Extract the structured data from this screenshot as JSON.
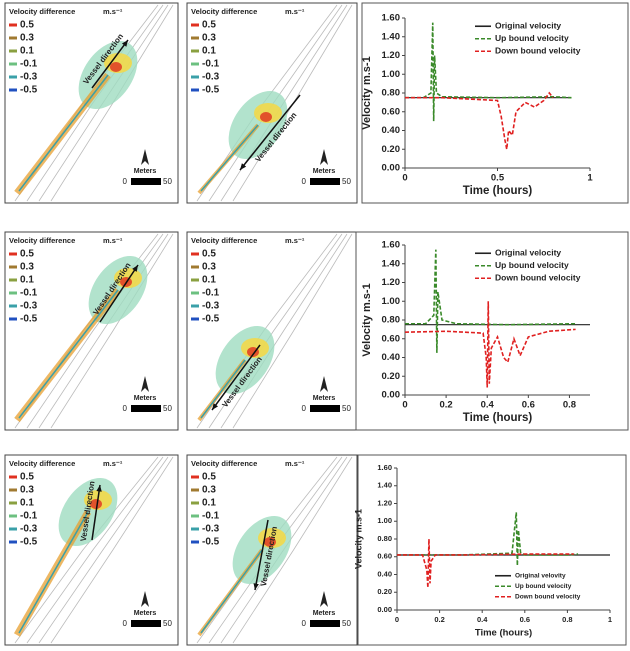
{
  "map_legend": {
    "title": "Velocity difference",
    "unit": "m.s⁻¹",
    "levels": [
      0.5,
      0.3,
      0.1,
      -0.1,
      -0.3,
      -0.5
    ],
    "colors": [
      "#e03020",
      "#a07a30",
      "#8aa040",
      "#6cc080",
      "#3aa0a8",
      "#2050c0"
    ]
  },
  "map_labels": {
    "direction": "Vessel direction",
    "scale_unit": "Meters",
    "scale_start": 0,
    "scale_end": 50
  },
  "chart_data": [
    {
      "type": "line",
      "x_label": "Time (hours)",
      "y_label": "Velocity m.s-1",
      "xlim": [
        0,
        1
      ],
      "xticks": [
        0,
        0.5,
        1
      ],
      "ylim": [
        0,
        1.6
      ],
      "yticks": [
        {
          "value": 0,
          "label": "0.00"
        },
        {
          "value": 0.2,
          "label": "0.20"
        },
        {
          "value": 0.4,
          "label": "0.40"
        },
        {
          "value": 0.6,
          "label": "0.60"
        },
        {
          "value": 0.8,
          "label": "0.80"
        },
        {
          "value": 1.0,
          "label": "1.00"
        },
        {
          "value": 1.2,
          "label": "1.20"
        },
        {
          "value": 1.4,
          "label": "1.40"
        },
        {
          "value": 1.6,
          "label": "1.60"
        }
      ],
      "legend": "upper right",
      "series": [
        {
          "name": "Original velocity",
          "color": "#222222",
          "dashed": false,
          "x": [
            0,
            0.9
          ],
          "values": [
            0.75,
            0.75
          ]
        },
        {
          "name": "Up bound velocity",
          "color": "#3a8a2a",
          "dashed": true,
          "x": [
            0,
            0.1,
            0.14,
            0.15,
            0.155,
            0.16,
            0.17,
            0.2,
            0.5,
            0.8,
            0.9
          ],
          "values": [
            0.75,
            0.75,
            0.8,
            1.55,
            0.5,
            1.2,
            0.8,
            0.76,
            0.75,
            0.76,
            0.75
          ]
        },
        {
          "name": "Down bound velocity",
          "color": "#e02020",
          "dashed": true,
          "x": [
            0,
            0.2,
            0.5,
            0.52,
            0.54,
            0.55,
            0.56,
            0.58,
            0.6,
            0.65,
            0.7,
            0.75,
            0.78,
            0.8
          ],
          "values": [
            0.75,
            0.75,
            0.72,
            0.55,
            0.3,
            0.2,
            0.4,
            0.35,
            0.6,
            0.7,
            0.65,
            0.72,
            0.8,
            0.75
          ]
        }
      ]
    },
    {
      "type": "line",
      "x_label": "Time (hours)",
      "y_label": "Velocity m.s-1",
      "xlim": [
        0,
        0.9
      ],
      "xticks": [
        0,
        0.2,
        0.4,
        0.6,
        0.8
      ],
      "ylim": [
        0,
        1.6
      ],
      "yticks": [
        {
          "value": 0,
          "label": "0.00"
        },
        {
          "value": 0.2,
          "label": "0.20"
        },
        {
          "value": 0.4,
          "label": "0.40"
        },
        {
          "value": 0.6,
          "label": "0.60"
        },
        {
          "value": 0.8,
          "label": "0.80"
        },
        {
          "value": 1.0,
          "label": "1.00"
        },
        {
          "value": 1.2,
          "label": "1.20"
        },
        {
          "value": 1.4,
          "label": "1.40"
        },
        {
          "value": 1.6,
          "label": "1.60"
        }
      ],
      "legend": "upper right",
      "series": [
        {
          "name": "Original velocity",
          "color": "#222222",
          "dashed": false,
          "x": [
            0,
            0.9
          ],
          "values": [
            0.75,
            0.75
          ]
        },
        {
          "name": "Up bound velocity",
          "color": "#3a8a2a",
          "dashed": true,
          "x": [
            0,
            0.1,
            0.14,
            0.15,
            0.155,
            0.16,
            0.18,
            0.25,
            0.5,
            0.83
          ],
          "values": [
            0.76,
            0.76,
            0.85,
            1.55,
            0.45,
            1.1,
            0.8,
            0.76,
            0.75,
            0.76
          ]
        },
        {
          "name": "Down bound velocity",
          "color": "#e02020",
          "dashed": true,
          "x": [
            0,
            0.2,
            0.38,
            0.395,
            0.4,
            0.405,
            0.41,
            0.42,
            0.45,
            0.48,
            0.5,
            0.53,
            0.56,
            0.6,
            0.7,
            0.83
          ],
          "values": [
            0.67,
            0.68,
            0.66,
            0.4,
            0.08,
            1.0,
            0.12,
            0.5,
            0.62,
            0.4,
            0.35,
            0.6,
            0.42,
            0.62,
            0.68,
            0.7
          ]
        }
      ]
    },
    {
      "type": "line",
      "x_label": "Time (hours)",
      "y_label": "Velocity m.s-1",
      "xlim": [
        0,
        1
      ],
      "xticks": [
        0,
        0.2,
        0.4,
        0.6,
        0.8,
        1
      ],
      "ylim": [
        0,
        1.6
      ],
      "yticks": [
        {
          "value": 0,
          "label": "0.00"
        },
        {
          "value": 0.2,
          "label": "0.20"
        },
        {
          "value": 0.4,
          "label": "0.40"
        },
        {
          "value": 0.6,
          "label": "0.60"
        },
        {
          "value": 0.8,
          "label": "0.80"
        },
        {
          "value": 1.0,
          "label": "1.00"
        },
        {
          "value": 1.2,
          "label": "1.20"
        },
        {
          "value": 1.4,
          "label": "1.40"
        },
        {
          "value": 1.6,
          "label": "1.60"
        }
      ],
      "legend": "lower right",
      "series": [
        {
          "name": "Original velovity",
          "color": "#222222",
          "dashed": false,
          "x": [
            0,
            1
          ],
          "values": [
            0.62,
            0.62
          ]
        },
        {
          "name": "Up bound velocity",
          "color": "#3a8a2a",
          "dashed": true,
          "x": [
            0,
            0.3,
            0.54,
            0.56,
            0.565,
            0.57,
            0.58,
            0.6,
            0.8,
            0.85
          ],
          "values": [
            0.62,
            0.62,
            0.64,
            1.1,
            0.5,
            0.9,
            0.65,
            0.62,
            0.62,
            0.63
          ]
        },
        {
          "name": "Down bound velocity",
          "color": "#e02020",
          "dashed": true,
          "x": [
            0,
            0.12,
            0.14,
            0.145,
            0.15,
            0.155,
            0.16,
            0.18,
            0.3,
            0.6,
            0.83
          ],
          "values": [
            0.62,
            0.62,
            0.45,
            0.25,
            0.8,
            0.3,
            0.55,
            0.62,
            0.62,
            0.63,
            0.63
          ]
        }
      ]
    }
  ]
}
